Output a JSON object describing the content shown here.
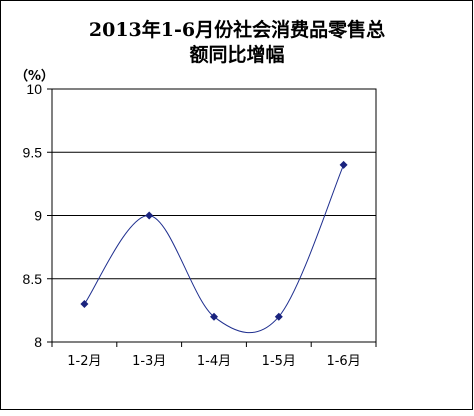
{
  "chart_data": {
    "type": "line",
    "title_lines": [
      "2013年1-6月份社会消费品零售总",
      "额同比增幅"
    ],
    "ylabel": "（%）",
    "categories": [
      "1-2月",
      "1-3月",
      "1-4月",
      "1-5月",
      "1-6月"
    ],
    "series": [
      {
        "values": [
          8.3,
          9.0,
          8.2,
          8.2,
          9.4
        ]
      }
    ],
    "ylim": [
      8,
      10
    ],
    "yticks": [
      "8",
      "8.5",
      "9",
      "9.5",
      "10"
    ],
    "grid": true,
    "smooth": true,
    "colors": {
      "line": "#1f2f8f",
      "marker": "#1a237e",
      "grid": "#000000",
      "frame": "#000000"
    }
  }
}
